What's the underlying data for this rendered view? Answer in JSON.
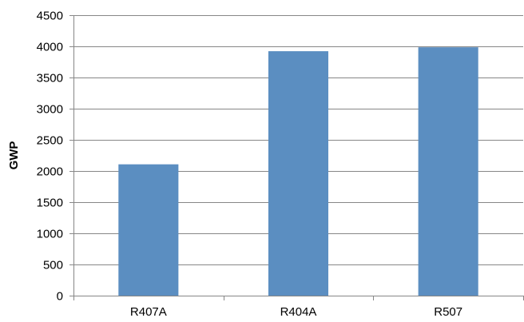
{
  "chart_data": {
    "type": "bar",
    "title": "",
    "xlabel": "",
    "ylabel": "GWP",
    "categories": [
      "R407A",
      "R404A",
      "R507"
    ],
    "values": [
      2107,
      3922,
      3985
    ],
    "ylim": [
      0,
      4500
    ],
    "y_ticks": [
      0,
      500,
      1000,
      1500,
      2000,
      2500,
      3000,
      3500,
      4000,
      4500
    ],
    "grid": "horizontal",
    "legend": "none",
    "colors": {
      "bar": "#5b8ec1",
      "bar_edge": "#4f7fae",
      "grid": "#878787",
      "axis": "#878787"
    }
  }
}
